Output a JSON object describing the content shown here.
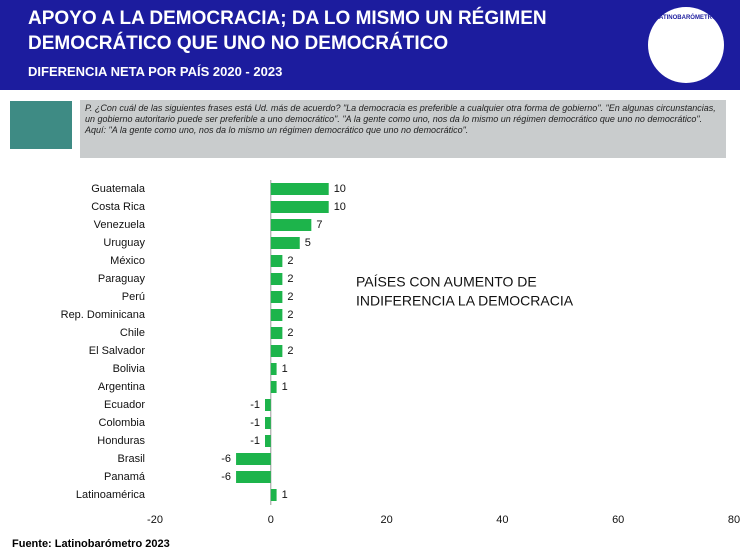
{
  "chart_data": {
    "type": "hbar",
    "title": [
      "APOYO A LA DEMOCRACIA; DA LO MISMO UN RÉGIMEN",
      "DEMOCRÁTICO QUE UNO NO DEMOCRÁTICO"
    ],
    "subtitle": "DIFERENCIA NETA POR PAÍS 2020 - 2023",
    "logo_text": "LATINOBARÓMETRO",
    "question": [
      "P. ¿Con cuál de las siguientes frases está Ud. más de acuerdo? \"La democracia es preferible a cualquier otra forma de gobierno\". \"En algunas circunstancias, un gobierno autoritario puede ser preferible a uno democrático\". \"A la gente como uno, nos da lo mismo un régimen democrático que uno no democrático\".",
      "Aquí: \"A la gente como uno, nos da lo mismo un régimen democrático que uno no democrático\"."
    ],
    "annotation": [
      "PAÍSES CON AUMENTO DE",
      "INDIFERENCIA LA DEMOCRACIA"
    ],
    "source": "Fuente: Latinobarómetro 2023",
    "categories": [
      "Guatemala",
      "Costa Rica",
      "Venezuela",
      "Uruguay",
      "México",
      "Paraguay",
      "Perú",
      "Rep. Dominicana",
      "Chile",
      "El Salvador",
      "Bolivia",
      "Argentina",
      "Ecuador",
      "Colombia",
      "Honduras",
      "Brasil",
      "Panamá",
      "Latinoamérica"
    ],
    "values": [
      10,
      10,
      7,
      5,
      2,
      2,
      2,
      2,
      2,
      2,
      1,
      1,
      -1,
      -1,
      -1,
      -6,
      -6,
      1
    ],
    "color": "#1db44b",
    "xlim": [
      -20,
      80
    ],
    "xticks": [
      -20,
      0,
      20,
      40,
      60,
      80
    ],
    "grid": false
  }
}
